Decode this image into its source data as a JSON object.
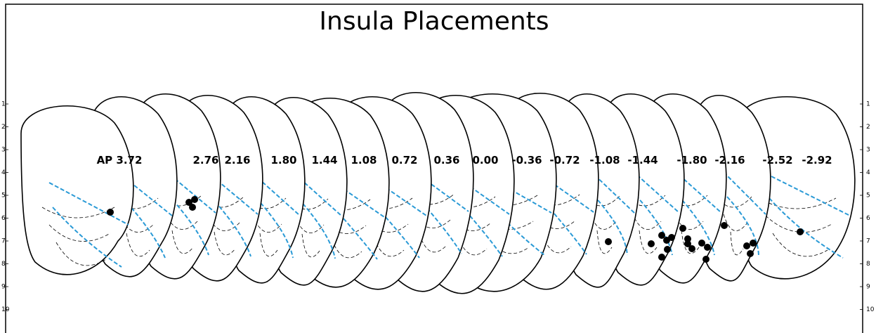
{
  "title": "Insula Placements",
  "sections": [
    "AP 3.72",
    "2.76",
    "2.16",
    "1.80",
    "1.44",
    "1.08",
    "0.72",
    "0.36",
    "0.00",
    "-0.36",
    "-0.72",
    "-1.08",
    "-1.44",
    "-1.80",
    "-2.16",
    "-2.52",
    "-2.92"
  ],
  "left_scale": [
    "1",
    "2",
    "3",
    "4",
    "5",
    "6",
    "7",
    "8",
    "9",
    "10"
  ],
  "right_scale": [
    "1",
    "2",
    "3",
    "4",
    "5",
    "6",
    "7",
    "8",
    "9",
    "10"
  ]
}
